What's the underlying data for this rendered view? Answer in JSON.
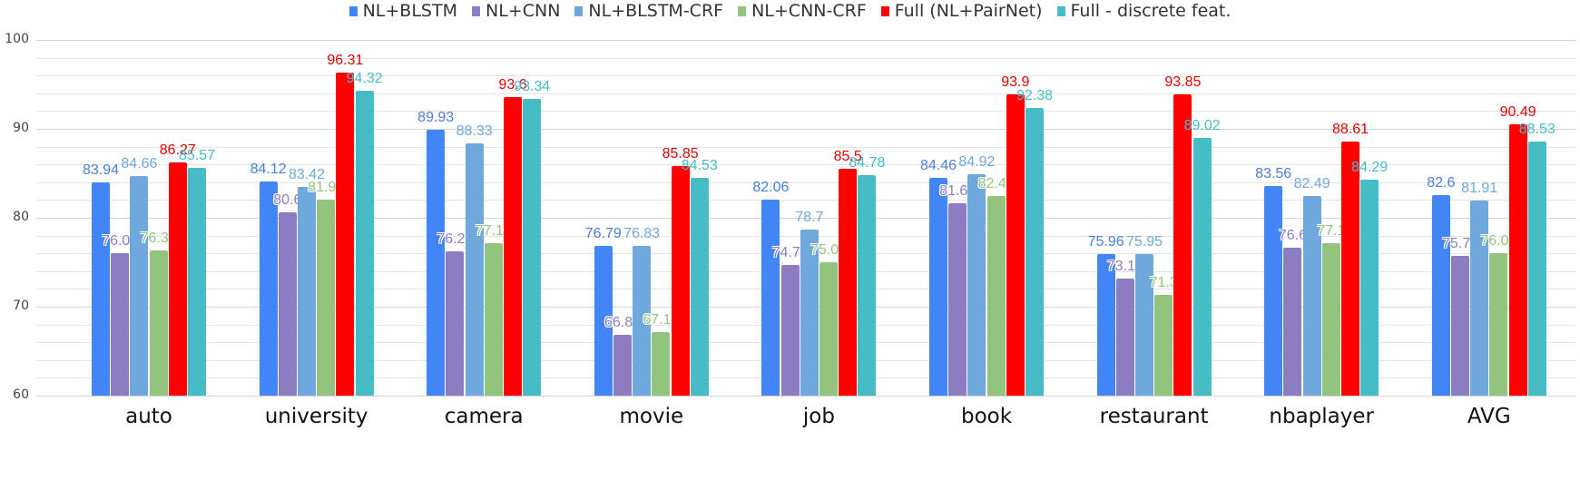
{
  "chart_data": {
    "type": "bar",
    "title": "",
    "xlabel": "",
    "ylabel": "",
    "ylim": [
      60,
      100
    ],
    "yticks": [
      60,
      70,
      80,
      90,
      100
    ],
    "grid": true,
    "minor_grid_step": 2,
    "legend_position": "top",
    "categories": [
      "auto",
      "university",
      "camera",
      "movie",
      "job",
      "book",
      "restaurant",
      "nbaplayer",
      "AVG"
    ],
    "series": [
      {
        "name": "NL+BLSTM",
        "color": "#4285f4",
        "values": [
          83.94,
          84.12,
          89.93,
          76.79,
          82.06,
          84.46,
          75.96,
          83.56,
          82.6
        ]
      },
      {
        "name": "NL+CNN",
        "color": "#8e7cc3",
        "values": [
          76.06,
          80.6,
          76.22,
          66.82,
          74.72,
          81.63,
          73.14,
          76.6,
          75.72
        ]
      },
      {
        "name": "NL+BLSTM-CRF",
        "color": "#6fa8dc",
        "values": [
          84.66,
          83.42,
          88.33,
          76.83,
          78.7,
          84.92,
          75.95,
          82.49,
          81.91
        ]
      },
      {
        "name": "NL+CNN-CRF",
        "color": "#93c47d",
        "values": [
          76.36,
          81.99,
          77.16,
          67.16,
          75.04,
          82.41,
          71.3,
          77.1,
          76.07
        ]
      },
      {
        "name": "Full (NL+PairNet)",
        "color": "#ff0000",
        "values": [
          86.27,
          96.31,
          93.6,
          85.85,
          85.5,
          93.9,
          93.85,
          88.61,
          90.49
        ]
      },
      {
        "name": "Full - discrete feat.",
        "color": "#46bdc6",
        "values": [
          85.57,
          94.32,
          93.34,
          84.53,
          84.78,
          92.38,
          89.02,
          84.29,
          88.53
        ]
      }
    ],
    "label_colors": [
      "#4a7fd8",
      "#8e7cc3",
      "#6fa8dc",
      "#93c47d",
      "#e00000",
      "#46bdc6"
    ]
  }
}
